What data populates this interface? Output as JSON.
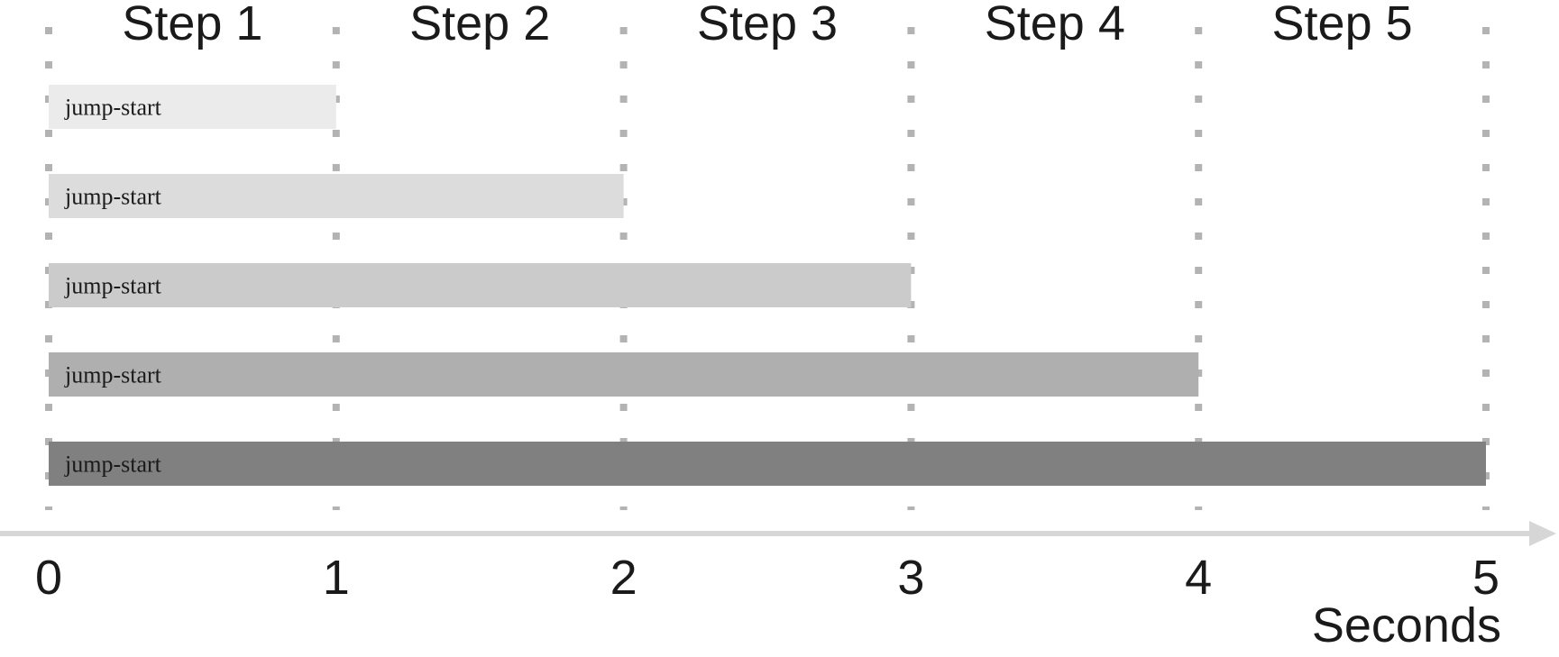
{
  "chart_data": {
    "type": "bar",
    "orientation": "horizontal",
    "steps": [
      "Step 1",
      "Step 2",
      "Step 3",
      "Step 4",
      "Step 5"
    ],
    "x_ticks": [
      "0",
      "1",
      "2",
      "3",
      "4",
      "5"
    ],
    "x_axis_title": "Seconds",
    "xlim": [
      0,
      5
    ],
    "bars": [
      {
        "label": "jump-start",
        "start": 0,
        "end": 1,
        "color": "#ebebeb"
      },
      {
        "label": "jump-start",
        "start": 0,
        "end": 2,
        "color": "#dcdcdc"
      },
      {
        "label": "jump-start",
        "start": 0,
        "end": 3,
        "color": "#cbcbcb"
      },
      {
        "label": "jump-start",
        "start": 0,
        "end": 4,
        "color": "#afafaf"
      },
      {
        "label": "jump-start",
        "start": 0,
        "end": 5,
        "color": "#808080"
      }
    ],
    "gridlines": "dotted",
    "grid_color": "#b3b3b3",
    "axis_color": "#d6d6d6"
  }
}
